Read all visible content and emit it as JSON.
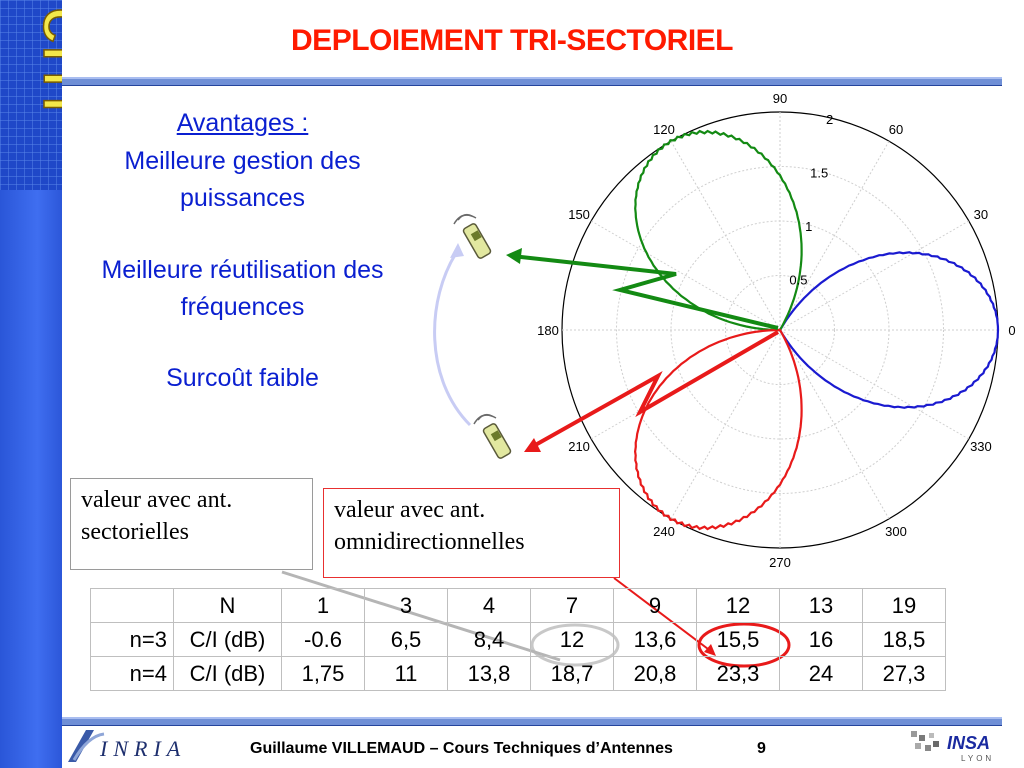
{
  "slide": {
    "title": "DEPLOIEMENT TRI-SECTORIEL",
    "logo_text": "CITI",
    "advantages_heading": "Avantages :",
    "advantages": [
      "Meilleure gestion des puissances",
      "Meilleure réutilisation des fréquences",
      "Surcoût faible"
    ],
    "note_sectorial": "valeur avec ant. sectorielles",
    "note_omni": "valeur avec ant. omnidirectionnelles",
    "footer": "Guillaume VILLEMAUD – Cours Techniques d’Antennes",
    "page_number": "9",
    "inria_logo": "INRIA",
    "insa_logo": "INSA",
    "insa_sub": "LYON",
    "colors": {
      "title": "#ff1a00",
      "text": "#0a1fd0",
      "sidebar": "#3f6ef0",
      "blue": "#1a1ad0",
      "green": "#138a13",
      "red": "#e81a1a"
    }
  },
  "table": {
    "header": [
      "",
      "N",
      "1",
      "3",
      "4",
      "7",
      "9",
      "12",
      "13",
      "19"
    ],
    "rows": [
      {
        "label": "n=3",
        "metric": "C/I (dB)",
        "values": [
          "-0.6",
          "6,5",
          "8,4",
          "12",
          "13,6",
          "15,5",
          "16",
          "18,5"
        ]
      },
      {
        "label": "n=4",
        "metric": "C/I (dB)",
        "values": [
          "1,75",
          "11",
          "13,8",
          "18,7",
          "20,8",
          "23,3",
          "24",
          "27,3"
        ]
      }
    ]
  },
  "chart_data": {
    "type": "polar",
    "angle_ticks": [
      "0",
      "30",
      "60",
      "90",
      "120",
      "150",
      "180",
      "210",
      "240",
      "270",
      "300",
      "330"
    ],
    "radial_ticks": [
      "0.5",
      "1",
      "1.5",
      "2"
    ],
    "rmax": 2,
    "series": [
      {
        "color": "#1a1ad0",
        "center_deg": 0,
        "peak": 2,
        "beamwidth_deg": 120
      },
      {
        "color": "#138a13",
        "center_deg": 120,
        "peak": 2,
        "beamwidth_deg": 120
      },
      {
        "color": "#e81a1a",
        "center_deg": 240,
        "peak": 2,
        "beamwidth_deg": 120
      }
    ]
  }
}
